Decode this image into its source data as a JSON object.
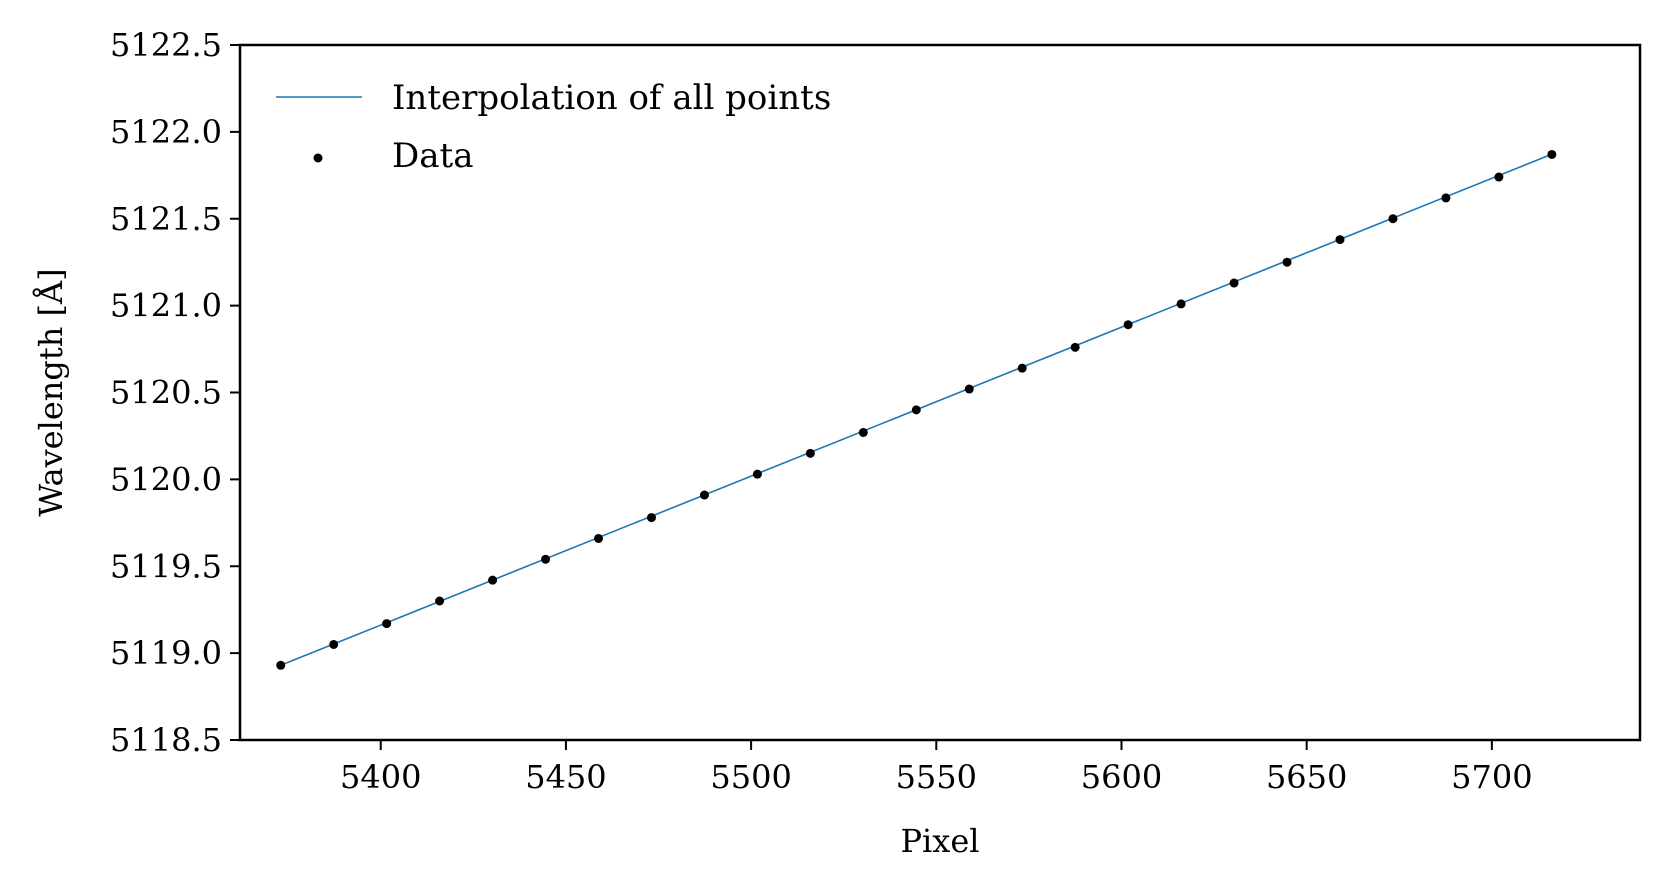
{
  "chart_data": {
    "type": "line",
    "xlabel": "Pixel",
    "ylabel": "Wavelength [Å]",
    "xlim": [
      5362,
      5740
    ],
    "ylim": [
      5118.5,
      5122.5
    ],
    "x_ticks": [
      5400,
      5450,
      5500,
      5550,
      5600,
      5650,
      5700
    ],
    "y_ticks": [
      5118.5,
      5119.0,
      5119.5,
      5120.0,
      5120.5,
      5121.0,
      5121.5,
      5122.0,
      5122.5
    ],
    "y_tick_labels": [
      "5118.5",
      "5119.0",
      "5119.5",
      "5120.0",
      "5120.5",
      "5121.0",
      "5121.5",
      "5122.0",
      "5122.5"
    ],
    "grid": false,
    "legend": {
      "position": "top-left",
      "entries": [
        {
          "label": "Interpolation of all points",
          "kind": "line",
          "color": "#1f77b4"
        },
        {
          "label": "Data",
          "kind": "marker",
          "color": "#000000"
        }
      ]
    },
    "series": [
      {
        "name": "Interpolation of all points",
        "kind": "line",
        "color": "#1f77b4",
        "x": [
          5373,
          5716
        ],
        "y": [
          5118.93,
          5121.87
        ]
      },
      {
        "name": "Data",
        "kind": "scatter",
        "color": "#000000",
        "x": [
          5373,
          5387.3,
          5401.6,
          5415.9,
          5430.2,
          5444.5,
          5458.8,
          5473.1,
          5487.4,
          5501.7,
          5516.0,
          5530.3,
          5544.6,
          5558.9,
          5573.2,
          5587.5,
          5601.8,
          5616.1,
          5630.4,
          5644.7,
          5659.0,
          5673.3,
          5687.6,
          5701.9,
          5716.2
        ],
        "y": [
          5118.93,
          5119.05,
          5119.17,
          5119.3,
          5119.42,
          5119.54,
          5119.66,
          5119.78,
          5119.91,
          5120.03,
          5120.15,
          5120.27,
          5120.4,
          5120.52,
          5120.64,
          5120.76,
          5120.89,
          5121.01,
          5121.13,
          5121.25,
          5121.38,
          5121.5,
          5121.62,
          5121.74,
          5121.87
        ]
      }
    ]
  }
}
